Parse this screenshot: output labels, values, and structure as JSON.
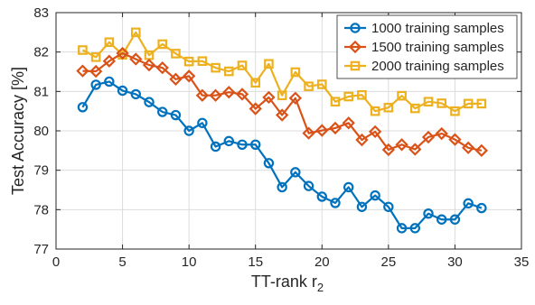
{
  "chart_data": {
    "type": "line",
    "xlabel": "TT-rank r",
    "xlabel_subscript": "2",
    "ylabel": "Test Accuracy [%]",
    "xlim": [
      0,
      35
    ],
    "ylim": [
      77,
      83
    ],
    "xticks": [
      0,
      5,
      10,
      15,
      20,
      25,
      30,
      35
    ],
    "yticks": [
      77,
      78,
      79,
      80,
      81,
      82,
      83
    ],
    "grid": true,
    "legend_position": "top-right",
    "x": [
      2,
      3,
      4,
      5,
      6,
      7,
      8,
      9,
      10,
      11,
      12,
      13,
      14,
      15,
      16,
      17,
      18,
      19,
      20,
      21,
      22,
      23,
      24,
      25,
      26,
      27,
      28,
      29,
      30,
      31,
      32
    ],
    "series": [
      {
        "name": "1000 training samples",
        "color": "#0072BD",
        "marker": "circle",
        "values": [
          80.6,
          81.17,
          81.25,
          81.02,
          80.93,
          80.73,
          80.48,
          80.4,
          80.0,
          80.2,
          79.6,
          79.74,
          79.65,
          79.65,
          79.18,
          78.57,
          78.95,
          78.6,
          78.33,
          78.17,
          78.57,
          78.07,
          78.36,
          78.07,
          77.53,
          77.53,
          77.9,
          77.75,
          77.75,
          78.16,
          78.04
        ]
      },
      {
        "name": "1500 training samples",
        "color": "#D95319",
        "marker": "diamond",
        "values": [
          81.52,
          81.51,
          81.77,
          81.97,
          81.82,
          81.67,
          81.6,
          81.31,
          81.39,
          80.9,
          80.9,
          80.98,
          80.93,
          80.56,
          80.85,
          80.4,
          80.83,
          79.94,
          80.01,
          80.07,
          80.2,
          79.77,
          79.98,
          79.52,
          79.65,
          79.53,
          79.84,
          79.93,
          79.78,
          79.57,
          79.5
        ]
      },
      {
        "name": "2000 training samples",
        "color": "#EDB120",
        "marker": "square",
        "values": [
          82.05,
          81.87,
          82.25,
          81.93,
          82.5,
          81.92,
          82.2,
          81.96,
          81.76,
          81.77,
          81.6,
          81.51,
          81.66,
          81.22,
          81.7,
          80.9,
          81.49,
          81.13,
          81.18,
          80.74,
          80.87,
          80.91,
          80.5,
          80.59,
          80.89,
          80.57,
          80.74,
          80.7,
          80.5,
          80.69,
          80.69
        ]
      }
    ]
  }
}
